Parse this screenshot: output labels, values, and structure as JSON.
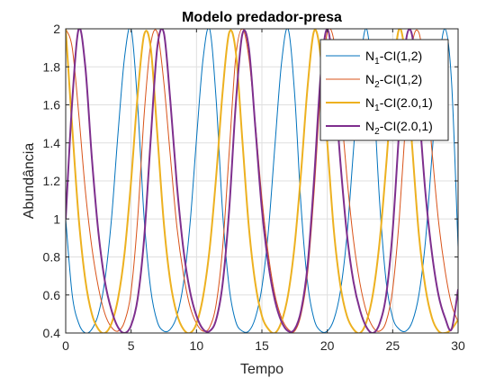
{
  "chart_data": {
    "type": "line",
    "title": "Modelo predador-presa",
    "xlabel": "Tempo",
    "ylabel": "Abundância",
    "xlim": [
      0,
      30
    ],
    "ylim": [
      0.4,
      2
    ],
    "xticks": [
      0,
      5,
      10,
      15,
      20,
      25,
      30
    ],
    "yticks": [
      0.4,
      0.6,
      0.8,
      1,
      1.2,
      1.4,
      1.6,
      1.8,
      2
    ],
    "grid": true,
    "legend_position": "top-right",
    "series": [
      {
        "name_parts": [
          "N",
          "1",
          "-CI(1,2)"
        ],
        "color": "#0072BD",
        "line": "thin",
        "x": [
          0,
          0.5,
          1,
          1.5,
          2,
          2.5,
          3,
          3.5,
          4,
          4.5,
          5,
          5.5,
          6,
          6.5,
          7,
          7.5,
          8,
          8.5,
          9,
          9.5,
          10,
          10.5,
          11,
          11.5,
          12,
          12.5,
          13,
          13.5,
          14,
          14.5,
          15,
          15.5,
          16,
          16.5,
          17,
          17.5,
          18,
          18.5,
          19,
          19.5,
          20,
          20.5,
          21,
          21.5,
          22,
          22.5,
          23,
          23.5,
          24,
          24.5,
          25,
          25.5,
          26,
          26.5,
          27,
          27.5,
          28,
          28.5,
          29,
          29.5,
          30
        ],
        "y": [
          1.0,
          0.6,
          0.45,
          0.4,
          0.42,
          0.5,
          0.68,
          1.0,
          1.45,
          1.85,
          2.0,
          1.6,
          1.0,
          0.63,
          0.46,
          0.41,
          0.42,
          0.49,
          0.66,
          0.97,
          1.42,
          1.84,
          2.0,
          1.63,
          1.03,
          0.64,
          0.46,
          0.41,
          0.41,
          0.48,
          0.64,
          0.94,
          1.39,
          1.82,
          2.0,
          1.66,
          1.06,
          0.66,
          0.47,
          0.41,
          0.41,
          0.47,
          0.62,
          0.91,
          1.36,
          1.8,
          2.0,
          1.69,
          1.09,
          0.67,
          0.48,
          0.42,
          0.41,
          0.46,
          0.6,
          0.88,
          1.33,
          1.78,
          2.0,
          1.72,
          0.85
        ]
      },
      {
        "name_parts": [
          "N",
          "2",
          "-CI(1,2)"
        ],
        "color": "#D95319",
        "line": "thin",
        "x": [
          0,
          0.5,
          1,
          1.5,
          2,
          2.5,
          3,
          3.5,
          4,
          4.5,
          5,
          5.5,
          6,
          6.5,
          7,
          7.5,
          8,
          8.5,
          9,
          9.5,
          10,
          10.5,
          11,
          11.5,
          12,
          12.5,
          13,
          13.5,
          14,
          14.5,
          15,
          15.5,
          16,
          16.5,
          17,
          17.5,
          18,
          18.5,
          19,
          19.5,
          20,
          20.5,
          21,
          21.5,
          22,
          22.5,
          23,
          23.5,
          24,
          24.5,
          25,
          25.5,
          26,
          26.5,
          27,
          27.5,
          28,
          28.5,
          29,
          29.5,
          30
        ],
        "y": [
          2.0,
          1.9,
          1.55,
          1.15,
          0.85,
          0.64,
          0.5,
          0.43,
          0.41,
          0.46,
          0.62,
          1.0,
          1.55,
          1.92,
          1.98,
          1.72,
          1.33,
          0.96,
          0.71,
          0.54,
          0.45,
          0.41,
          0.43,
          0.55,
          0.85,
          1.35,
          1.85,
          2.0,
          1.85,
          1.5,
          1.11,
          0.81,
          0.6,
          0.48,
          0.42,
          0.41,
          0.5,
          0.72,
          1.15,
          1.68,
          1.98,
          1.94,
          1.62,
          1.22,
          0.89,
          0.66,
          0.51,
          0.43,
          0.41,
          0.46,
          0.63,
          1.0,
          1.52,
          1.92,
          1.98,
          1.75,
          1.36,
          0.99,
          0.73,
          0.55,
          0.46
        ]
      },
      {
        "name_parts": [
          "N",
          "1",
          "-CI(2.0,1)"
        ],
        "color": "#EDB120",
        "line": "thick",
        "x": [
          0,
          0.5,
          1,
          1.5,
          2,
          2.5,
          3,
          3.5,
          4,
          4.5,
          5,
          5.5,
          6,
          6.5,
          7,
          7.5,
          8,
          8.5,
          9,
          9.5,
          10,
          10.5,
          11,
          11.5,
          12,
          12.5,
          13,
          13.5,
          14,
          14.5,
          15,
          15.5,
          16,
          16.5,
          17,
          17.5,
          18,
          18.5,
          19,
          19.5,
          20,
          20.5,
          21,
          21.5,
          22,
          22.5,
          23,
          23.5,
          24,
          24.5,
          25,
          25.5,
          26,
          26.5,
          27,
          27.5,
          28,
          28.5,
          29,
          29.5,
          30
        ],
        "y": [
          2.0,
          1.48,
          1.0,
          0.68,
          0.5,
          0.42,
          0.4,
          0.45,
          0.58,
          0.82,
          1.2,
          1.65,
          1.97,
          1.9,
          1.45,
          0.98,
          0.67,
          0.5,
          0.42,
          0.4,
          0.45,
          0.59,
          0.84,
          1.22,
          1.67,
          1.98,
          1.88,
          1.42,
          0.96,
          0.66,
          0.49,
          0.42,
          0.4,
          0.46,
          0.6,
          0.86,
          1.25,
          1.7,
          1.99,
          1.85,
          1.4,
          0.94,
          0.65,
          0.49,
          0.42,
          0.4,
          0.46,
          0.61,
          0.88,
          1.28,
          1.73,
          2.0,
          1.83,
          1.37,
          0.92,
          0.64,
          0.48,
          0.41,
          0.4,
          0.42,
          0.47
        ]
      },
      {
        "name_parts": [
          "N",
          "2",
          "-CI(2.0,1)"
        ],
        "color": "#7E2F8E",
        "line": "thick",
        "x": [
          0,
          0.5,
          1,
          1.5,
          2,
          2.5,
          3,
          3.5,
          4,
          4.5,
          5,
          5.5,
          6,
          6.5,
          7,
          7.5,
          8,
          8.5,
          9,
          9.5,
          10,
          10.5,
          11,
          11.5,
          12,
          12.5,
          13,
          13.5,
          14,
          14.5,
          15,
          15.5,
          16,
          16.5,
          17,
          17.5,
          18,
          18.5,
          19,
          19.5,
          20,
          20.5,
          21,
          21.5,
          22,
          22.5,
          23,
          23.5,
          24,
          24.5,
          25,
          25.5,
          26,
          26.5,
          27,
          27.5,
          28,
          28.5,
          29,
          29.5,
          30
        ],
        "y": [
          1.0,
          1.62,
          2.0,
          1.8,
          1.32,
          0.93,
          0.67,
          0.52,
          0.43,
          0.4,
          0.44,
          0.58,
          0.9,
          1.42,
          1.9,
          1.98,
          1.62,
          1.18,
          0.84,
          0.62,
          0.49,
          0.42,
          0.41,
          0.47,
          0.66,
          1.05,
          1.6,
          1.97,
          1.9,
          1.48,
          1.05,
          0.76,
          0.57,
          0.46,
          0.41,
          0.42,
          0.52,
          0.76,
          1.22,
          1.76,
          2.0,
          1.75,
          1.3,
          0.92,
          0.67,
          0.52,
          0.43,
          0.4,
          0.45,
          0.6,
          0.94,
          1.47,
          1.93,
          1.96,
          1.58,
          1.14,
          0.82,
          0.6,
          0.48,
          0.42,
          0.63
        ]
      }
    ]
  }
}
